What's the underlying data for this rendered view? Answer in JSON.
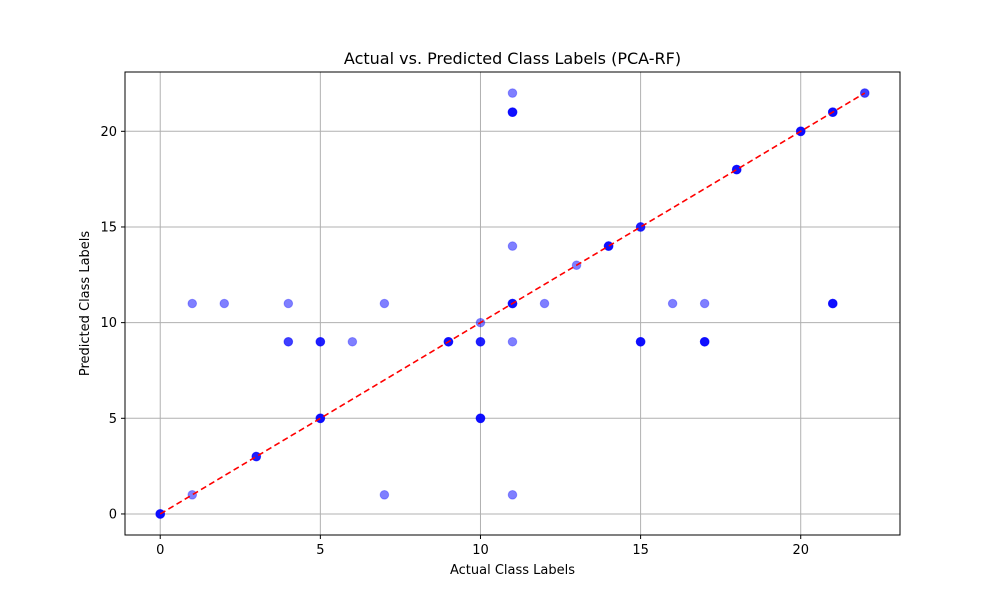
{
  "chart_data": {
    "type": "scatter",
    "title": "Actual vs. Predicted Class Labels (PCA-RF)",
    "xlabel": "Actual Class Labels",
    "ylabel": "Predicted Class Labels",
    "xlim": [
      -1.1,
      23.1
    ],
    "ylim": [
      -1.1,
      23.1
    ],
    "xticks": [
      0,
      5,
      10,
      15,
      20
    ],
    "yticks": [
      0,
      5,
      10,
      15,
      20
    ],
    "xtick_labels": [
      "0",
      "5",
      "10",
      "15",
      "20"
    ],
    "ytick_labels": [
      "0",
      "5",
      "10",
      "15",
      "20"
    ],
    "grid": true,
    "point_color": "#0000ff",
    "point_alpha": 0.5,
    "reference_line": {
      "style": "dashed",
      "color": "#ff0000",
      "from": [
        0,
        0
      ],
      "to": [
        22,
        22
      ]
    },
    "points": [
      {
        "x": 0,
        "y": 0,
        "n": 4
      },
      {
        "x": 1,
        "y": 1,
        "n": 1
      },
      {
        "x": 1,
        "y": 11,
        "n": 1
      },
      {
        "x": 2,
        "y": 11,
        "n": 1
      },
      {
        "x": 3,
        "y": 3,
        "n": 3
      },
      {
        "x": 4,
        "y": 9,
        "n": 2
      },
      {
        "x": 4,
        "y": 11,
        "n": 1
      },
      {
        "x": 5,
        "y": 5,
        "n": 4
      },
      {
        "x": 5,
        "y": 9,
        "n": 3
      },
      {
        "x": 6,
        "y": 9,
        "n": 1
      },
      {
        "x": 7,
        "y": 1,
        "n": 1
      },
      {
        "x": 7,
        "y": 11,
        "n": 1
      },
      {
        "x": 9,
        "y": 9,
        "n": 4
      },
      {
        "x": 10,
        "y": 10,
        "n": 1
      },
      {
        "x": 10,
        "y": 9,
        "n": 3
      },
      {
        "x": 10,
        "y": 5,
        "n": 4
      },
      {
        "x": 11,
        "y": 22,
        "n": 1
      },
      {
        "x": 11,
        "y": 21,
        "n": 4
      },
      {
        "x": 11,
        "y": 14,
        "n": 1
      },
      {
        "x": 11,
        "y": 11,
        "n": 4
      },
      {
        "x": 11,
        "y": 9,
        "n": 1
      },
      {
        "x": 11,
        "y": 1,
        "n": 1
      },
      {
        "x": 12,
        "y": 11,
        "n": 1
      },
      {
        "x": 13,
        "y": 13,
        "n": 1
      },
      {
        "x": 14,
        "y": 14,
        "n": 4
      },
      {
        "x": 15,
        "y": 15,
        "n": 3
      },
      {
        "x": 15,
        "y": 9,
        "n": 4
      },
      {
        "x": 16,
        "y": 11,
        "n": 1
      },
      {
        "x": 17,
        "y": 11,
        "n": 1
      },
      {
        "x": 17,
        "y": 9,
        "n": 4
      },
      {
        "x": 18,
        "y": 18,
        "n": 4
      },
      {
        "x": 20,
        "y": 20,
        "n": 4
      },
      {
        "x": 21,
        "y": 21,
        "n": 4
      },
      {
        "x": 21,
        "y": 11,
        "n": 4
      },
      {
        "x": 22,
        "y": 22,
        "n": 2
      }
    ]
  }
}
